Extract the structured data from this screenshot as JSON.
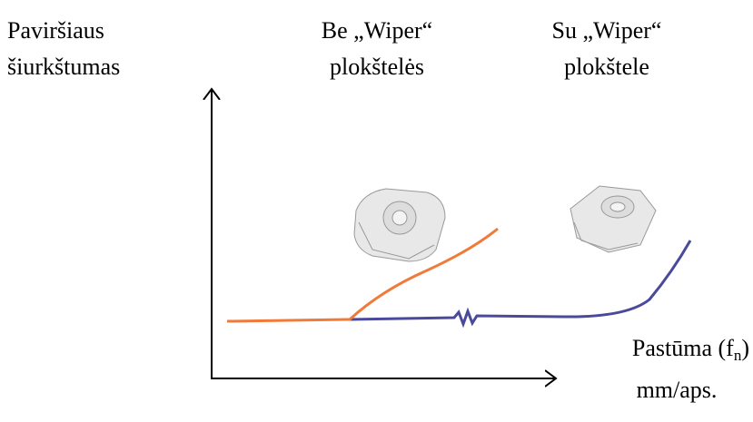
{
  "y_axis_label": {
    "lines": [
      "Paviršiaus",
      "šiurkštumas"
    ]
  },
  "curves": [
    {
      "label_lines": [
        "Be „Wiper“",
        "plokštelės"
      ]
    },
    {
      "label_lines": [
        "Su „Wiper“",
        "plokštele"
      ]
    }
  ],
  "x_axis_label": {
    "text": "Pastūma (f",
    "subscript": "n",
    "suffix": ")",
    "unit": "mm/aps."
  }
}
